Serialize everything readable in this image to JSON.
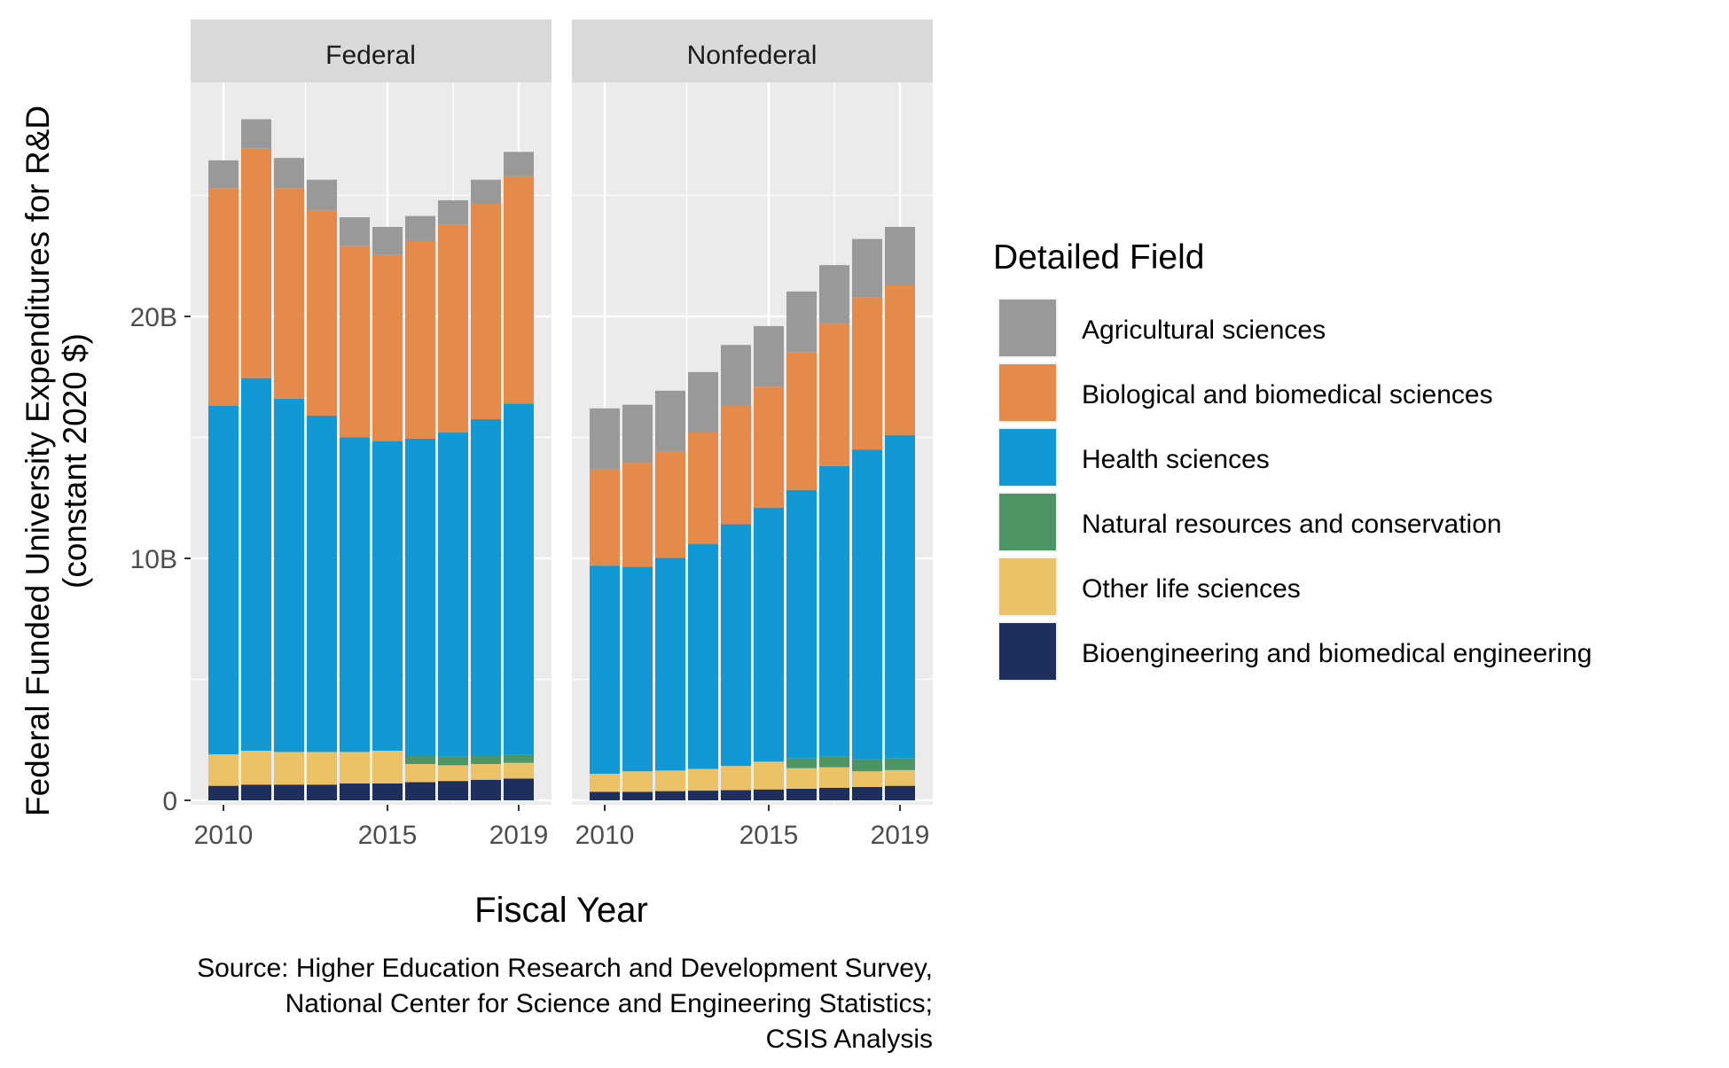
{
  "chart_data": {
    "type": "bar",
    "stacked": true,
    "facets": [
      "Federal",
      "Nonfederal"
    ],
    "x": [
      2010,
      2011,
      2012,
      2013,
      2014,
      2015,
      2016,
      2017,
      2018,
      2019
    ],
    "x_ticks": [
      2010,
      2015,
      2019
    ],
    "x_tick_labels": [
      "2010",
      "2015",
      "2019"
    ],
    "y_ticks": [
      0,
      10000000000,
      20000000000
    ],
    "y_tick_labels": [
      "0",
      "10B",
      "20B"
    ],
    "ylim": [
      0,
      31000000000
    ],
    "grid": true,
    "legend_position": "right",
    "xlabel": "Fiscal Year",
    "ylabel_lines": [
      "Federal Funded University Expenditures for R&D",
      "(constant 2020 $)"
    ],
    "legend_title": "Detailed Field",
    "caption_lines": [
      "Source: Higher Education Research and Development Survey,",
      "National Center for Science and Engineering Statistics;",
      "CSIS Analysis"
    ],
    "series": [
      {
        "name": "Bioengineering and biomedical engineering",
        "color": "#1E2F5E",
        "values": {
          "Federal": [
            0.6,
            0.65,
            0.65,
            0.65,
            0.7,
            0.7,
            0.75,
            0.8,
            0.85,
            0.9
          ],
          "Nonfederal": [
            0.35,
            0.35,
            0.38,
            0.4,
            0.42,
            0.45,
            0.48,
            0.52,
            0.55,
            0.6
          ]
        }
      },
      {
        "name": "Other life sciences",
        "color": "#ECC266",
        "values": {
          "Federal": [
            1.3,
            1.4,
            1.35,
            1.35,
            1.3,
            1.35,
            0.75,
            0.65,
            0.65,
            0.65
          ],
          "Nonfederal": [
            0.75,
            0.85,
            0.85,
            0.9,
            1.0,
            1.15,
            0.85,
            0.85,
            0.65,
            0.65
          ]
        }
      },
      {
        "name": "Natural resources and conservation",
        "color": "#4E9565",
        "values": {
          "Federal": [
            0,
            0,
            0,
            0,
            0,
            0,
            0.35,
            0.35,
            0.35,
            0.35
          ],
          "Nonfederal": [
            0,
            0,
            0,
            0,
            0,
            0,
            0.4,
            0.45,
            0.5,
            0.5
          ]
        }
      },
      {
        "name": "Health sciences",
        "color": "#1199D6",
        "values": {
          "Federal": [
            14.4,
            15.4,
            14.6,
            13.9,
            13.0,
            12.8,
            13.1,
            13.4,
            13.9,
            14.5
          ],
          "Nonfederal": [
            8.6,
            8.45,
            8.8,
            9.3,
            10.0,
            10.5,
            11.1,
            12.0,
            12.8,
            13.35
          ]
        }
      },
      {
        "name": "Biological and biomedical sciences",
        "color": "#E48A4A",
        "values": {
          "Federal": [
            9.0,
            9.5,
            8.7,
            8.5,
            7.9,
            7.7,
            8.2,
            8.6,
            8.9,
            9.4
          ],
          "Nonfederal": [
            4.0,
            4.3,
            4.4,
            4.6,
            4.9,
            5.0,
            5.7,
            5.9,
            6.3,
            6.2
          ]
        }
      },
      {
        "name": "Agricultural sciences",
        "color": "#999999",
        "values": {
          "Federal": [
            1.15,
            1.2,
            1.25,
            1.25,
            1.2,
            1.15,
            1.0,
            1.0,
            1.0,
            1.0
          ],
          "Nonfederal": [
            2.5,
            2.4,
            2.5,
            2.5,
            2.5,
            2.5,
            2.5,
            2.4,
            2.4,
            2.4
          ]
        }
      }
    ],
    "values_unit": "billions of constant 2020 $",
    "legend_order": [
      "Agricultural sciences",
      "Biological and biomedical sciences",
      "Health sciences",
      "Natural resources and conservation",
      "Other life sciences",
      "Bioengineering and biomedical engineering"
    ]
  }
}
